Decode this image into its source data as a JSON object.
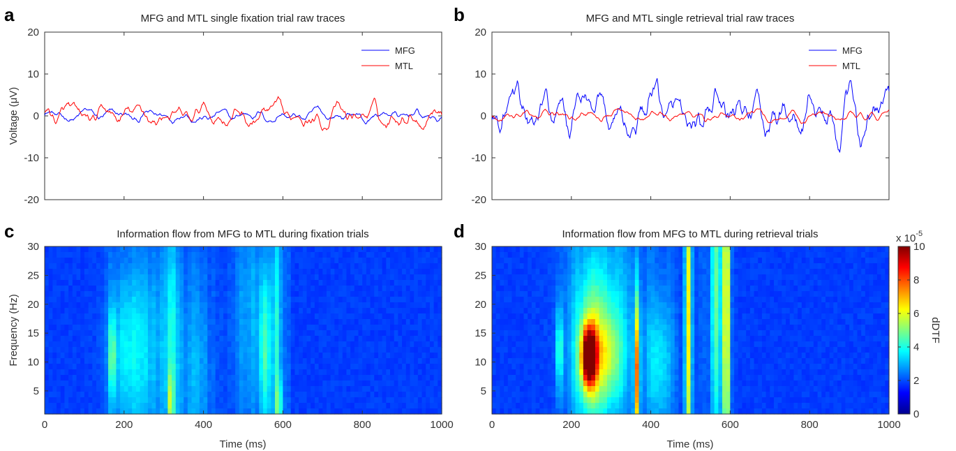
{
  "panels": {
    "a": {
      "letter": "a",
      "title": "MFG and MTL single fixation trial raw traces"
    },
    "b": {
      "letter": "b",
      "title": "MFG and MTL single retrieval trial raw traces"
    },
    "c": {
      "letter": "c",
      "title": "Information flow from MFG to MTL during fixation trials"
    },
    "d": {
      "letter": "d",
      "title": "Information flow from MFG to MTL during retrieval trials"
    }
  },
  "colorbar": {
    "label": "dDTF",
    "exponent_base": "x 10",
    "exponent_power": "-5",
    "ticks": [
      "0",
      "2",
      "4",
      "6",
      "8",
      "10"
    ],
    "range": [
      0,
      10
    ]
  },
  "colors": {
    "mfg": "#0000ff",
    "mtl": "#ff0000"
  },
  "chart_data": [
    {
      "type": "line",
      "panel": "a",
      "title": "MFG and MTL single fixation trial raw traces",
      "ylabel": "Voltage (μV)",
      "xlabel": "",
      "xlim": [
        0,
        1000
      ],
      "ylim": [
        -20,
        20
      ],
      "yticks": [
        "20",
        "10",
        "0",
        "-10",
        "-20"
      ],
      "legend": "top-right",
      "series": [
        {
          "name": "MFG",
          "color": "#0000ff",
          "amplitude": 1.8
        },
        {
          "name": "MTL",
          "color": "#ff0000",
          "amplitude": 3.0
        }
      ]
    },
    {
      "type": "line",
      "panel": "b",
      "title": "MFG and MTL single retrieval trial raw traces",
      "xlabel": "",
      "xlim": [
        0,
        1000
      ],
      "ylim": [
        -20,
        20
      ],
      "yticks": [
        "20",
        "10",
        "0",
        "-10",
        "-20"
      ],
      "legend": "top-right",
      "series": [
        {
          "name": "MFG",
          "color": "#0000ff",
          "amplitude": 7.0
        },
        {
          "name": "MTL",
          "color": "#ff0000",
          "amplitude": 1.6
        }
      ]
    },
    {
      "type": "heatmap",
      "panel": "c",
      "title": "Information flow from MFG to MTL during fixation trials",
      "xlabel": "Time (ms)",
      "ylabel": "Frequency (Hz)",
      "xlim": [
        0,
        1000
      ],
      "ylim": [
        1,
        30
      ],
      "xticks": [
        "0",
        "200",
        "400",
        "600",
        "800",
        "1000"
      ],
      "yticks": [
        "30",
        "25",
        "20",
        "15",
        "10",
        "5"
      ],
      "hotspots": [
        {
          "t": 170,
          "f": 11,
          "dt": 5,
          "df": 5,
          "v": 3.0
        },
        {
          "t": 200,
          "f": 12,
          "dt": 30,
          "df": 10,
          "v": 1.5
        },
        {
          "t": 260,
          "f": 12,
          "dt": 40,
          "df": 12,
          "v": 1.3
        },
        {
          "t": 320,
          "f": 15,
          "dt": 12,
          "df": 15,
          "v": 1.7
        },
        {
          "t": 318,
          "f": 3,
          "dt": 5,
          "df": 4,
          "v": 3.0
        },
        {
          "t": 380,
          "f": 8,
          "dt": 30,
          "df": 12,
          "v": 1.0
        },
        {
          "t": 520,
          "f": 18,
          "dt": 30,
          "df": 14,
          "v": 1.0
        },
        {
          "t": 555,
          "f": 12,
          "dt": 10,
          "df": 10,
          "v": 2.6
        },
        {
          "t": 585,
          "f": 14,
          "dt": 8,
          "df": 18,
          "v": 2.2
        },
        {
          "t": 590,
          "f": 3,
          "dt": 4,
          "df": 3,
          "v": 3.3
        }
      ]
    },
    {
      "type": "heatmap",
      "panel": "d",
      "title": "Information flow from MFG to MTL during retrieval trials",
      "xlabel": "Time (ms)",
      "xlim": [
        0,
        1000
      ],
      "ylim": [
        1,
        30
      ],
      "xticks": [
        "0",
        "200",
        "400",
        "600",
        "800",
        "1000"
      ],
      "yticks": [
        "30",
        "25",
        "20",
        "15",
        "10",
        "5"
      ],
      "hotspots": [
        {
          "t": 170,
          "f": 12,
          "dt": 6,
          "df": 5,
          "v": 2.6
        },
        {
          "t": 245,
          "f": 11,
          "dt": 13,
          "df": 3.5,
          "v": 8.5
        },
        {
          "t": 250,
          "f": 11,
          "dt": 28,
          "df": 8,
          "v": 3.5
        },
        {
          "t": 300,
          "f": 11,
          "dt": 25,
          "df": 6,
          "v": 2.5
        },
        {
          "t": 280,
          "f": 20,
          "dt": 60,
          "df": 14,
          "v": 1.4
        },
        {
          "t": 365,
          "f": 8,
          "dt": 5,
          "df": 10,
          "v": 6.0
        },
        {
          "t": 420,
          "f": 10,
          "dt": 25,
          "df": 8,
          "v": 1.7
        },
        {
          "t": 495,
          "f": 17,
          "dt": 6,
          "df": 25,
          "v": 4.8
        },
        {
          "t": 565,
          "f": 22,
          "dt": 10,
          "df": 20,
          "v": 3.0
        },
        {
          "t": 590,
          "f": 20,
          "dt": 5,
          "df": 25,
          "v": 6.5
        }
      ]
    }
  ]
}
